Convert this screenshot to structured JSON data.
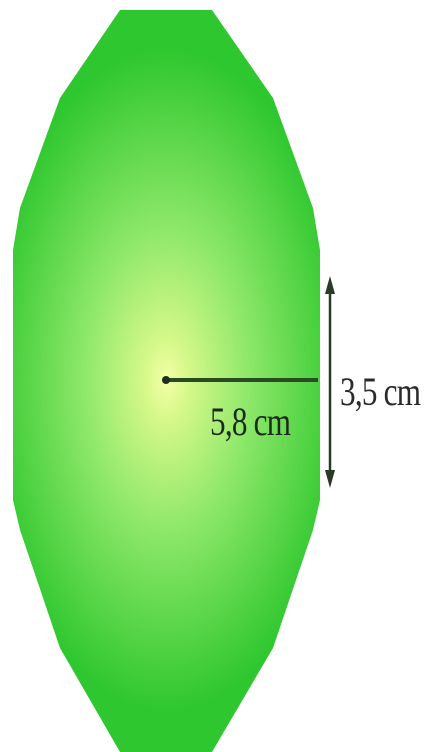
{
  "figure": {
    "fill_center": "#f2ff9a",
    "fill_mid": "#8fe86a",
    "fill_edge": "#2fc72f",
    "stroke_color": "#1e5a1e"
  },
  "labels": {
    "radius": "5,8 cm",
    "side": "3,5 cm"
  }
}
